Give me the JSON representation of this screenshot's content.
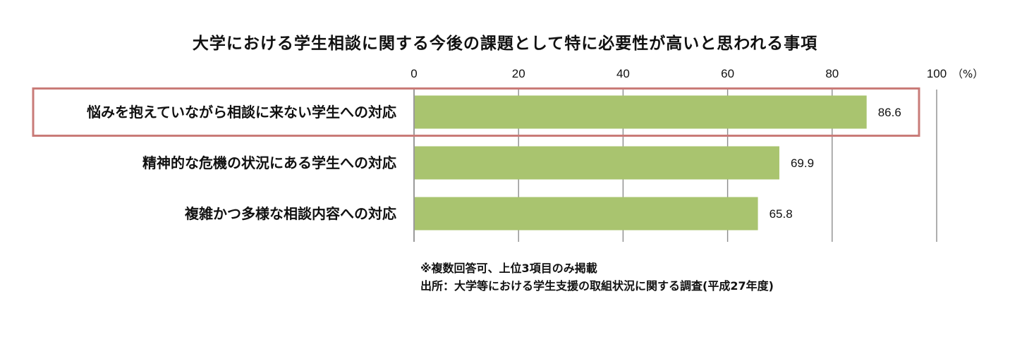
{
  "chart_data": {
    "type": "bar",
    "orientation": "horizontal",
    "title": "大学における学生相談に関する今後の課題として特に必要性が高いと思われる事項",
    "categories": [
      "悩みを抱えていながら相談に来ない学生への対応",
      "精神的な危機の状況にある学生への対応",
      "複雑かつ多様な相談内容への対応"
    ],
    "values": [
      86.6,
      69.9,
      65.8
    ],
    "value_labels": [
      "86.6",
      "69.9",
      "65.8"
    ],
    "xlim": [
      0,
      100
    ],
    "x_ticks": [
      "0",
      "20",
      "40",
      "60",
      "80",
      "100"
    ],
    "x_unit": "（%）",
    "axis_position": "top",
    "grid": true,
    "highlighted_category_index": 0,
    "bar_color": "#a9c46f",
    "highlight_color": "#c97b78",
    "notes": [
      "※複数回答可、上位3項目のみ掲載",
      "出所：大学等における学生支援の取組状況に関する調査(平成27年度)"
    ]
  }
}
